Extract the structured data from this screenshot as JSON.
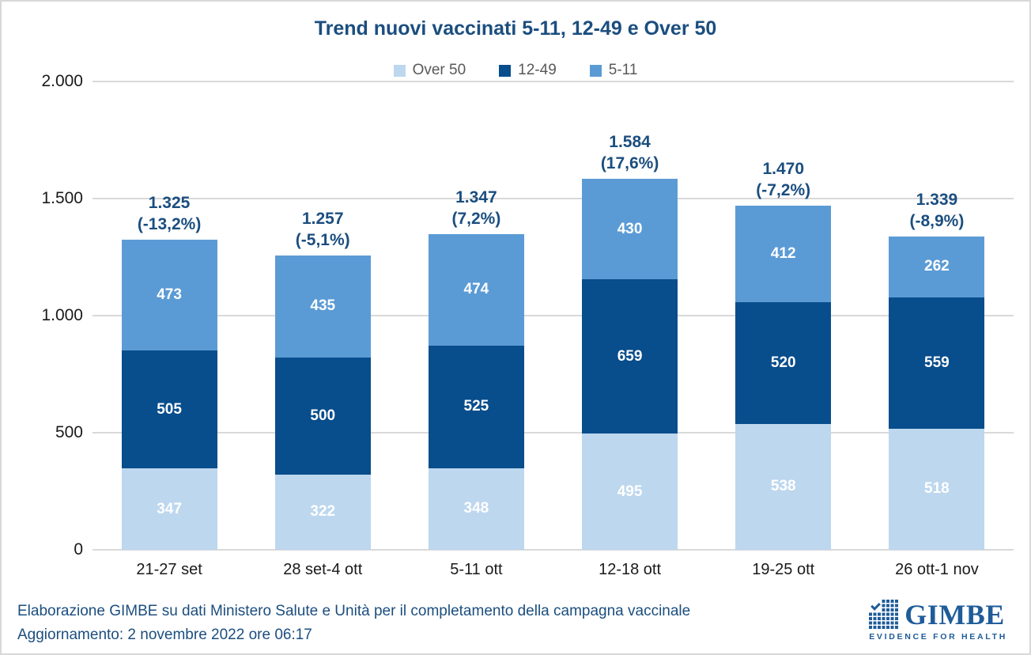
{
  "chart_data": {
    "type": "bar",
    "stacked": true,
    "title": "Trend nuovi vaccinati 5-11, 12-49 e Over 50",
    "categories": [
      "21-27 set",
      "28 set-4 ott",
      "5-11 ott",
      "12-18 ott",
      "19-25 ott",
      "26 ott-1 nov"
    ],
    "series": [
      {
        "name": "Over 50",
        "color": "#BDD7EE",
        "values": [
          347,
          322,
          348,
          495,
          538,
          518
        ]
      },
      {
        "name": "12-49",
        "color": "#084D8C",
        "values": [
          505,
          500,
          525,
          659,
          520,
          559
        ]
      },
      {
        "name": "5-11",
        "color": "#5B9BD5",
        "values": [
          473,
          435,
          474,
          430,
          412,
          262
        ]
      }
    ],
    "totals": [
      {
        "value": "1.325",
        "pct": "(-13,2%)"
      },
      {
        "value": "1.257",
        "pct": "(-5,1%)"
      },
      {
        "value": "1.347",
        "pct": "(7,2%)"
      },
      {
        "value": "1.584",
        "pct": "(17,6%)"
      },
      {
        "value": "1.470",
        "pct": "(-7,2%)"
      },
      {
        "value": "1.339",
        "pct": "(-8,9%)"
      }
    ],
    "y_axis": {
      "ticks": [
        "0",
        "500",
        "1.000",
        "1.500",
        "2.000"
      ],
      "tick_values": [
        0,
        500,
        1000,
        1500,
        2000
      ],
      "max": 2000
    },
    "xlabel": "",
    "ylabel": "",
    "grid": true,
    "legend_position": "top"
  },
  "footer": {
    "line1": "Elaborazione GIMBE su dati Ministero Salute e Unità per il completamento della campagna vaccinale",
    "line2": "Aggiornamento: 2 novembre 2022 ore 06:17"
  },
  "logo": {
    "name": "GIMBE",
    "tagline": "EVIDENCE FOR HEALTH"
  },
  "colors": {
    "title_text": "#1B4E7F",
    "total_label_text": "#1B4E7F",
    "legend_text": "#595959",
    "grid_line": "#D9D9D9",
    "axis_text": "#1A1A1A",
    "segment_label_text": "#FFFFFF",
    "footer_text": "#1B4E7F",
    "logo_blue": "#1F5C99",
    "frame_border": "#D8D8D8"
  }
}
